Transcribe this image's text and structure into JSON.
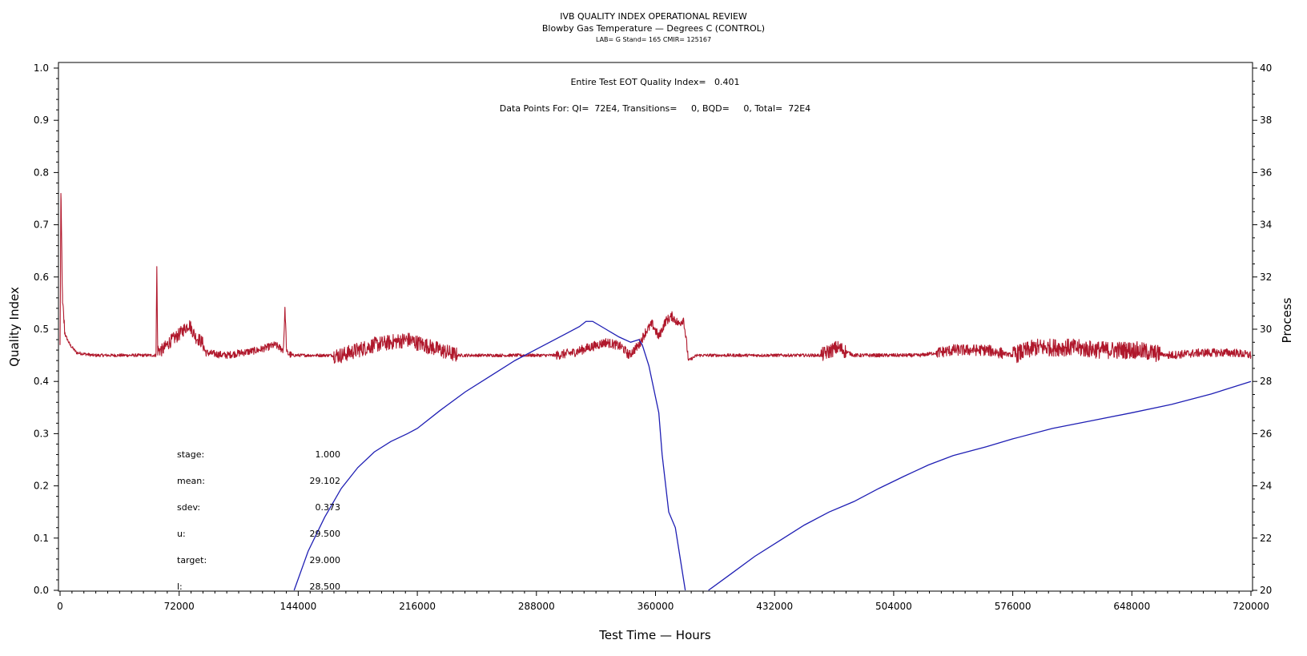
{
  "chart_data": {
    "type": "line",
    "title": "IVB QUALITY INDEX OPERATIONAL REVIEW",
    "subtitle": "Blowby Gas Temperature — Degrees C (CONTROL)",
    "subtitle2": "LAB= G Stand= 165 CMIR= 125167",
    "xlabel": "Test Time — Hours",
    "ylabel": "Quality Index",
    "y2label": "Process",
    "xlim": [
      0,
      720000
    ],
    "ylim": [
      0,
      1.0
    ],
    "y2lim": [
      20,
      40
    ],
    "x_ticks": [
      0,
      72000,
      144000,
      216000,
      288000,
      360000,
      432000,
      504000,
      576000,
      648000,
      720000
    ],
    "x_tick_labels": [
      "0",
      "72000",
      "144000",
      "216000",
      "288000",
      "360000",
      "432000",
      "504000",
      "576000",
      "648000",
      "720000"
    ],
    "y_ticks": [
      0.0,
      0.1,
      0.2,
      0.3,
      0.4,
      0.5,
      0.6,
      0.7,
      0.8,
      0.9,
      1.0
    ],
    "y_tick_labels": [
      "0.0",
      "0.1",
      "0.2",
      "0.3",
      "0.4",
      "0.5",
      "0.6",
      "0.7",
      "0.8",
      "0.9",
      "1.0"
    ],
    "y2_ticks": [
      20,
      22,
      24,
      26,
      28,
      30,
      32,
      34,
      36,
      38,
      40
    ],
    "y2_tick_labels": [
      "20",
      "22",
      "24",
      "26",
      "28",
      "30",
      "32",
      "34",
      "36",
      "38",
      "40"
    ],
    "annotations": [
      "Entire Test EOT Quality Index=   0.401",
      "Data Points For: QI=  72E4, Transitions=     0, BQD=     0, Total=  72E4"
    ],
    "stats": [
      {
        "label": "stage:",
        "value": "1.000"
      },
      {
        "label": "mean:",
        "value": "29.102"
      },
      {
        "label": "sdev:",
        "value": "0.373"
      },
      {
        "label": "u:",
        "value": "29.500"
      },
      {
        "label": "target:",
        "value": "29.000"
      },
      {
        "label": "l:",
        "value": "28.500"
      }
    ],
    "series": [
      {
        "axis": "left",
        "color": "#1f1fb4",
        "x": [
          141500,
          150000,
          160000,
          170000,
          180000,
          190000,
          200000,
          210000,
          216000,
          230000,
          245000,
          260000,
          275000,
          290000,
          305000,
          314000,
          318000,
          322000,
          330000,
          338000,
          345000,
          350000,
          352000,
          356000,
          358000,
          362000,
          364000,
          368000,
          372000,
          374000,
          378000
        ],
        "y": [
          0.0,
          0.075,
          0.14,
          0.195,
          0.235,
          0.265,
          0.285,
          0.3,
          0.31,
          0.345,
          0.38,
          0.41,
          0.44,
          0.465,
          0.49,
          0.505,
          0.515,
          0.515,
          0.5,
          0.485,
          0.475,
          0.48,
          0.47,
          0.43,
          0.4,
          0.34,
          0.26,
          0.15,
          0.12,
          0.08,
          0.0
        ],
        "x2": [
          392000,
          405000,
          420000,
          435000,
          450000,
          465000,
          480000,
          495000,
          510000,
          525000,
          540000,
          560000,
          576000,
          600000,
          624000,
          648000,
          672000,
          696000,
          720000
        ],
        "y2": [
          0.0,
          0.03,
          0.065,
          0.095,
          0.125,
          0.15,
          0.17,
          0.195,
          0.218,
          0.24,
          0.258,
          0.275,
          0.29,
          0.31,
          0.325,
          0.34,
          0.356,
          0.376,
          0.4
        ]
      },
      {
        "axis": "right",
        "color": "#b0182c",
        "x": [
          0,
          500,
          1500,
          3000,
          6000,
          10000,
          20000,
          40000,
          58000,
          58500,
          59000,
          62000,
          66000,
          72000,
          78000,
          82000,
          86000,
          88000,
          100000,
          110000,
          120000,
          130000,
          135000,
          136000,
          137000,
          140000,
          150000,
          160000,
          170000,
          180000,
          190000,
          200000,
          210000,
          220000,
          230000,
          240000,
          260000,
          280000,
          300000,
          310000,
          320000,
          330000,
          336000,
          340000,
          344000,
          350000,
          354000,
          358000,
          362000,
          366000,
          370000,
          374000,
          377000,
          380000,
          385000,
          400000,
          420000,
          440000,
          460000,
          470000,
          480000,
          500000,
          520000,
          540000,
          560000,
          576000,
          590000,
          610000,
          630000,
          650000,
          670000,
          690000,
          710000,
          720000
        ],
        "y": [
          29.3,
          35.2,
          31.0,
          29.8,
          29.4,
          29.1,
          29.0,
          29.0,
          29.0,
          32.4,
          29.2,
          29.2,
          29.5,
          29.8,
          30.2,
          29.7,
          29.5,
          29.1,
          29.0,
          29.1,
          29.2,
          29.4,
          29.2,
          30.8,
          29.1,
          29.0,
          29.0,
          29.0,
          29.0,
          29.2,
          29.4,
          29.5,
          29.6,
          29.4,
          29.2,
          29.0,
          29.0,
          29.0,
          29.0,
          29.1,
          29.3,
          29.5,
          29.4,
          29.3,
          29.0,
          29.4,
          29.9,
          30.2,
          29.7,
          30.3,
          30.5,
          30.2,
          30.4,
          28.8,
          29.0,
          29.0,
          29.0,
          29.0,
          29.0,
          29.3,
          29.0,
          29.0,
          29.0,
          29.2,
          29.2,
          29.0,
          29.3,
          29.3,
          29.2,
          29.2,
          29.0,
          29.1,
          29.1,
          29.0
        ],
        "noise": [
          [
            0,
            3000,
            0.3
          ],
          [
            3000,
            58000,
            0.06
          ],
          [
            58000,
            88000,
            0.25
          ],
          [
            88000,
            140000,
            0.14
          ],
          [
            140000,
            165000,
            0.06
          ],
          [
            165000,
            240000,
            0.3
          ],
          [
            240000,
            300000,
            0.06
          ],
          [
            300000,
            380000,
            0.18
          ],
          [
            380000,
            460000,
            0.06
          ],
          [
            460000,
            475000,
            0.28
          ],
          [
            475000,
            530000,
            0.07
          ],
          [
            530000,
            570000,
            0.22
          ],
          [
            570000,
            576000,
            0.08
          ],
          [
            576000,
            665000,
            0.34
          ],
          [
            665000,
            670000,
            0.08
          ],
          [
            670000,
            720000,
            0.16
          ]
        ]
      }
    ]
  }
}
